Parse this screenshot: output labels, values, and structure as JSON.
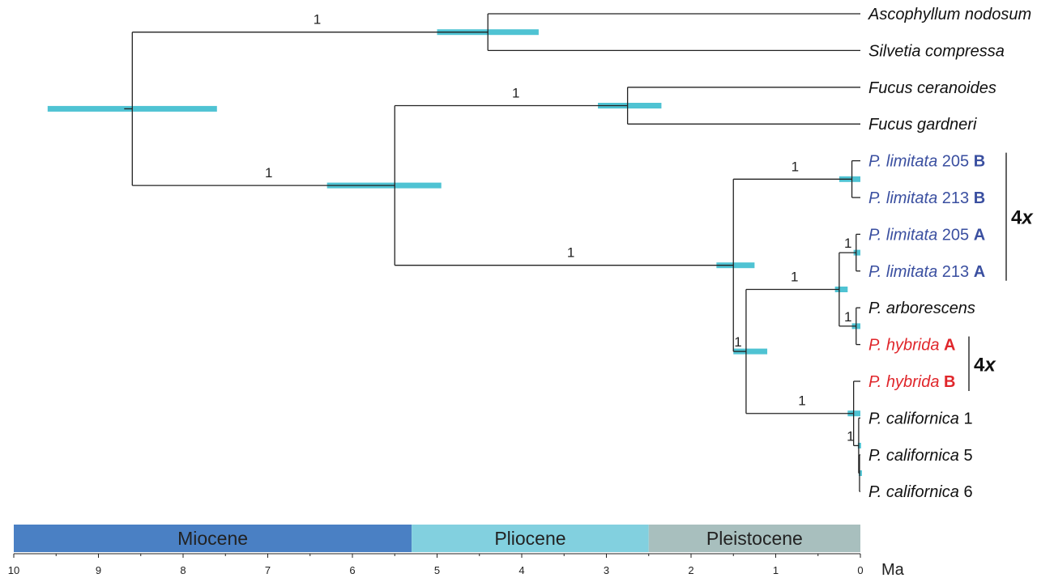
{
  "colors": {
    "branch": "#222222",
    "hpd_bar": "#4fc3d3",
    "blue_taxa": "#3a4fa0",
    "red_taxa": "#e0262b",
    "miocene": "#4a80c4",
    "pliocene": "#82d0df",
    "pleistocene": "#a8bfbe"
  },
  "taxa": [
    {
      "id": "asco",
      "label": [
        {
          "t": "Ascophyllum nodosum",
          "it": true
        }
      ],
      "color": "black"
    },
    {
      "id": "silv",
      "label": [
        {
          "t": "Silvetia compressa",
          "it": true
        }
      ],
      "color": "black"
    },
    {
      "id": "fcer",
      "label": [
        {
          "t": "Fucus ceranoides",
          "it": true
        }
      ],
      "color": "black"
    },
    {
      "id": "fgar",
      "label": [
        {
          "t": "Fucus gardneri",
          "it": true
        }
      ],
      "color": "black"
    },
    {
      "id": "pl205b",
      "label": [
        {
          "t": "P. limitata",
          "it": true
        },
        {
          "t": " 205 "
        },
        {
          "t": "B",
          "b": true
        }
      ],
      "color": "blue"
    },
    {
      "id": "pl213b",
      "label": [
        {
          "t": "P. limitata",
          "it": true
        },
        {
          "t": " 213 "
        },
        {
          "t": "B",
          "b": true
        }
      ],
      "color": "blue"
    },
    {
      "id": "pl205a",
      "label": [
        {
          "t": "P. limitata",
          "it": true
        },
        {
          "t": " 205 "
        },
        {
          "t": "A",
          "b": true
        }
      ],
      "color": "blue"
    },
    {
      "id": "pl213a",
      "label": [
        {
          "t": "P. limitata",
          "it": true
        },
        {
          "t": " 213 "
        },
        {
          "t": "A",
          "b": true
        }
      ],
      "color": "blue"
    },
    {
      "id": "parb",
      "label": [
        {
          "t": "P. arborescens",
          "it": true
        }
      ],
      "color": "black"
    },
    {
      "id": "phya",
      "label": [
        {
          "t": "P. hybrida",
          "it": true
        },
        {
          "t": " "
        },
        {
          "t": "A",
          "b": true
        }
      ],
      "color": "red"
    },
    {
      "id": "phyb",
      "label": [
        {
          "t": "P. hybrida",
          "it": true
        },
        {
          "t": " "
        },
        {
          "t": "B",
          "b": true
        }
      ],
      "color": "red"
    },
    {
      "id": "pc1",
      "label": [
        {
          "t": "P. californica",
          "it": true
        },
        {
          "t": " 1"
        }
      ],
      "color": "black"
    },
    {
      "id": "pc5",
      "label": [
        {
          "t": "P. californica",
          "it": true
        },
        {
          "t": " 5"
        }
      ],
      "color": "black"
    },
    {
      "id": "pc6",
      "label": [
        {
          "t": "P. californica",
          "it": true
        },
        {
          "t": " 6"
        }
      ],
      "color": "black"
    }
  ],
  "nodes": [
    {
      "id": "root",
      "age": 8.6,
      "hpd": [
        9.6,
        7.6
      ],
      "children": [
        "n_as",
        "n_fuc"
      ]
    },
    {
      "id": "n_as",
      "age": 4.4,
      "hpd": [
        5.0,
        3.8
      ],
      "support": "1",
      "children": [
        "asco",
        "silv"
      ]
    },
    {
      "id": "n_fuc",
      "age": 5.5,
      "hpd": [
        6.3,
        4.95
      ],
      "support": "1",
      "children": [
        "n_f",
        "n_pel"
      ]
    },
    {
      "id": "n_f",
      "age": 2.75,
      "hpd": [
        3.1,
        2.35
      ],
      "support": "1",
      "children": [
        "fcer",
        "fgar"
      ]
    },
    {
      "id": "n_pel",
      "age": 1.5,
      "hpd": [
        1.7,
        1.25
      ],
      "support": "1",
      "children": [
        "n_limB",
        "n_core"
      ]
    },
    {
      "id": "n_limB",
      "age": 0.1,
      "hpd": [
        0.25,
        0.0
      ],
      "support": "1",
      "children": [
        "pl205b",
        "pl213b"
      ]
    },
    {
      "id": "n_core",
      "age": 1.35,
      "hpd": [
        1.5,
        1.1
      ],
      "support": "1",
      "children": [
        "n_lah",
        "n_cal"
      ]
    },
    {
      "id": "n_lah",
      "age": 0.25,
      "hpd": [
        0.3,
        0.15
      ],
      "support": "1",
      "children": [
        "n_limA",
        "n_ah"
      ]
    },
    {
      "id": "n_limA",
      "age": 0.05,
      "hpd": [
        0.08,
        0.0
      ],
      "support": "1",
      "children": [
        "pl205a",
        "pl213a"
      ]
    },
    {
      "id": "n_ah",
      "age": 0.05,
      "hpd": [
        0.1,
        0.0
      ],
      "support": "1",
      "children": [
        "parb",
        "phya"
      ]
    },
    {
      "id": "n_cal",
      "age": 0.08,
      "hpd": [
        0.15,
        0.0
      ],
      "support": "1",
      "children": [
        "phyb",
        "n_c2"
      ]
    },
    {
      "id": "n_c2",
      "age": 0.02,
      "hpd": [
        0.03,
        0.0
      ],
      "support": "1",
      "children": [
        "pc1",
        "n_c3"
      ]
    },
    {
      "id": "n_c3",
      "age": 0.01,
      "hpd": [
        0.02,
        0.0
      ],
      "children": [
        "pc5",
        "pc6"
      ]
    }
  ],
  "brackets": [
    {
      "label": "4x",
      "taxa": [
        "pl205b",
        "pl213a"
      ]
    },
    {
      "label": "4x",
      "taxa": [
        "phya",
        "phyb"
      ]
    }
  ],
  "epochs": [
    {
      "name": "Miocene",
      "from": 10,
      "to": 5.3,
      "color": "miocene"
    },
    {
      "name": "Pliocene",
      "from": 5.3,
      "to": 2.5,
      "color": "pliocene"
    },
    {
      "name": "Pleistocene",
      "from": 2.5,
      "to": 0,
      "color": "pleistocene"
    }
  ],
  "axis": {
    "ticks": [
      "10",
      "9",
      "8",
      "7",
      "6",
      "5",
      "4",
      "3",
      "2",
      "1",
      "0"
    ],
    "max": 10,
    "min": 0,
    "unit": "Ma"
  }
}
